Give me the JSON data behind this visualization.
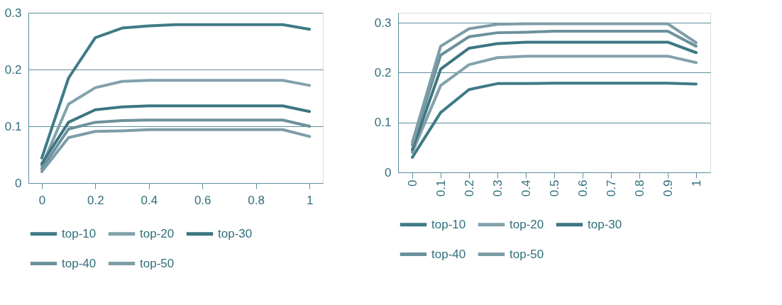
{
  "chart_data": [
    {
      "type": "line",
      "x": [
        0,
        0.1,
        0.2,
        0.3,
        0.4,
        0.5,
        0.6,
        0.7,
        0.8,
        0.9,
        1
      ],
      "xlim": [
        -0.05,
        1.05
      ],
      "xticks": [
        0,
        0.2,
        0.4,
        0.6,
        0.8,
        1
      ],
      "ylim": [
        0,
        0.3
      ],
      "yticks": [
        0,
        0.1,
        0.2,
        0.3
      ],
      "grid": "y",
      "legend": "bottom",
      "line_style": "solid",
      "marker": "none",
      "series": [
        {
          "name": "top-10",
          "color": "#3f7a87",
          "values": [
            0.044,
            0.185,
            0.256,
            0.273,
            0.277,
            0.279,
            0.279,
            0.279,
            0.279,
            0.279,
            0.271
          ]
        },
        {
          "name": "top-20",
          "color": "#82a2ab",
          "values": [
            0.03,
            0.139,
            0.168,
            0.179,
            0.181,
            0.181,
            0.181,
            0.181,
            0.181,
            0.181,
            0.172
          ]
        },
        {
          "name": "top-30",
          "color": "#3d7682",
          "values": [
            0.034,
            0.107,
            0.129,
            0.134,
            0.136,
            0.136,
            0.136,
            0.136,
            0.136,
            0.136,
            0.126
          ]
        },
        {
          "name": "top-40",
          "color": "#6b919b",
          "values": [
            0.025,
            0.095,
            0.107,
            0.11,
            0.111,
            0.111,
            0.111,
            0.111,
            0.111,
            0.111,
            0.1
          ]
        },
        {
          "name": "top-50",
          "color": "#7d9da6",
          "values": [
            0.02,
            0.08,
            0.091,
            0.092,
            0.094,
            0.094,
            0.094,
            0.094,
            0.094,
            0.094,
            0.082
          ]
        }
      ]
    },
    {
      "type": "line",
      "categories": [
        "0",
        "0.1",
        "0.2",
        "0.3",
        "0.4",
        "0.5",
        "0.6",
        "0.7",
        "0.8",
        "0.9",
        "1"
      ],
      "ylim": [
        0,
        0.32
      ],
      "yticks": [
        0,
        0.1,
        0.2,
        0.3
      ],
      "grid": "y",
      "legend": "bottom",
      "line_style": "solid",
      "marker": "none",
      "series": [
        {
          "name": "top-10",
          "color": "#3f7a87",
          "values": [
            0.03,
            0.12,
            0.166,
            0.178,
            0.178,
            0.179,
            0.179,
            0.179,
            0.179,
            0.179,
            0.177
          ]
        },
        {
          "name": "top-20",
          "color": "#82a2ab",
          "values": [
            0.04,
            0.174,
            0.216,
            0.23,
            0.233,
            0.233,
            0.233,
            0.233,
            0.233,
            0.233,
            0.22
          ]
        },
        {
          "name": "top-30",
          "color": "#3d7682",
          "values": [
            0.045,
            0.207,
            0.249,
            0.258,
            0.261,
            0.261,
            0.261,
            0.261,
            0.261,
            0.261,
            0.24
          ]
        },
        {
          "name": "top-40",
          "color": "#6b919b",
          "values": [
            0.055,
            0.235,
            0.272,
            0.28,
            0.281,
            0.283,
            0.283,
            0.283,
            0.283,
            0.283,
            0.253
          ]
        },
        {
          "name": "top-50",
          "color": "#7d9da6",
          "values": [
            0.06,
            0.253,
            0.288,
            0.297,
            0.298,
            0.298,
            0.298,
            0.298,
            0.298,
            0.298,
            0.26
          ]
        }
      ]
    }
  ]
}
